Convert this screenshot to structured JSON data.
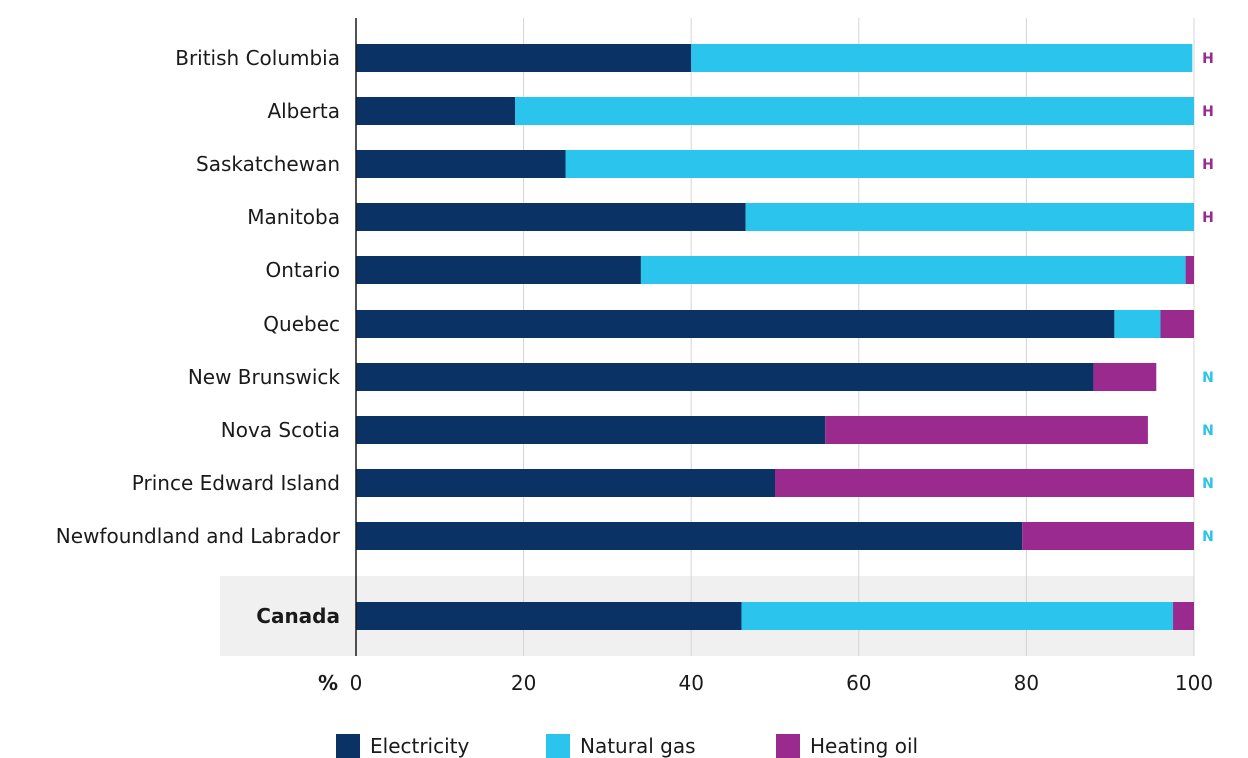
{
  "chart_data": {
    "type": "bar",
    "orientation": "horizontal",
    "stacked": true,
    "categories": [
      "British Columbia",
      "Alberta",
      "Saskatchewan",
      "Manitoba",
      "Ontario",
      "Quebec",
      "New Brunswick",
      "Nova Scotia",
      "Prince Edward Island",
      "Newfoundland and Labrador",
      "Canada"
    ],
    "highlighted_category": "Canada",
    "series": [
      {
        "name": "Electricity",
        "color": "#0b3264",
        "values": [
          40,
          19,
          25,
          46.5,
          34,
          90.5,
          88,
          56,
          50,
          79.5,
          46
        ]
      },
      {
        "name": "Natural gas",
        "color": "#2bc4ec",
        "values": [
          59.8,
          81,
          75,
          53.5,
          65,
          5.5,
          0,
          0,
          0,
          0,
          51.5
        ]
      },
      {
        "name": "Heating oil",
        "color": "#9b2a8f",
        "values": [
          0,
          0,
          0,
          0,
          1,
          4,
          7.5,
          38.5,
          50,
          20.5,
          2.5
        ]
      }
    ],
    "annotations": [
      {
        "category": "British Columbia",
        "text": "H",
        "color": "#9b2a8f"
      },
      {
        "category": "Alberta",
        "text": "H",
        "color": "#9b2a8f"
      },
      {
        "category": "Saskatchewan",
        "text": "H",
        "color": "#9b2a8f"
      },
      {
        "category": "Manitoba",
        "text": "H",
        "color": "#9b2a8f"
      },
      {
        "category": "New Brunswick",
        "text": "N",
        "color": "#2bc4ec"
      },
      {
        "category": "Nova Scotia",
        "text": "N",
        "color": "#2bc4ec"
      },
      {
        "category": "Prince Edward Island",
        "text": "N",
        "color": "#2bc4ec"
      },
      {
        "category": "Newfoundland and Labrador",
        "text": "N",
        "color": "#2bc4ec"
      }
    ],
    "xaxis": {
      "unit_label": "%",
      "ticks": [
        0,
        20,
        40,
        60,
        80,
        100
      ],
      "tick_labels": [
        "0",
        "20",
        "40",
        "60",
        "80",
        "100"
      ],
      "range": [
        0,
        100
      ]
    },
    "grid": true,
    "legend": {
      "position": "bottom",
      "entries": [
        "Electricity",
        "Natural gas",
        "Heating oil"
      ]
    }
  }
}
